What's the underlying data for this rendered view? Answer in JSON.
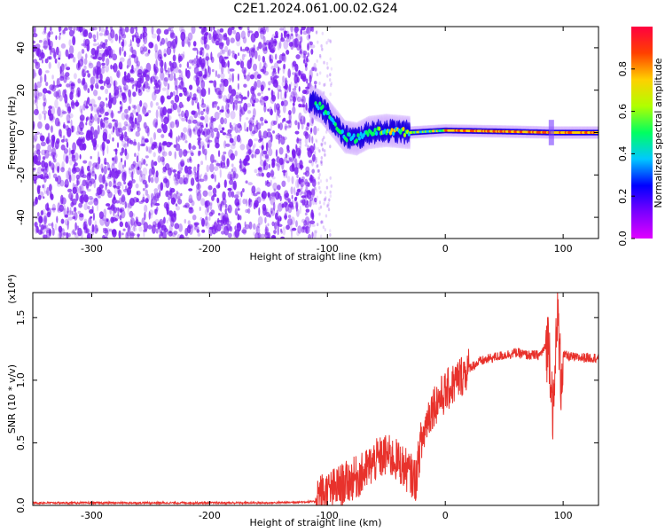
{
  "title": "C2E1.2024.061.00.02.G24",
  "colors": {
    "snr_line": "#e8322c",
    "spectrum_noise": "#7a1cf0",
    "background": "#ffffff"
  },
  "colorbar_gradient": [
    "#e000ff",
    "#7a00ff",
    "#0000ff",
    "#00c8ff",
    "#00ff60",
    "#b0ff00",
    "#ffd000",
    "#ff4000",
    "#ff0040"
  ],
  "chart_data": [
    {
      "type": "heatmap",
      "xlabel": "Height of straight line (km)",
      "ylabel": "Frequency (Hz)",
      "xlim": [
        -350,
        130
      ],
      "ylim": [
        -50,
        50
      ],
      "xticks": [
        -300,
        -200,
        -100,
        0,
        100
      ],
      "yticks": [
        -40,
        -20,
        0,
        20,
        40
      ],
      "grid": false,
      "colorbar": {
        "label": "Normalized spectral amplitude",
        "range": [
          0,
          1
        ],
        "ticks": [
          "0.0",
          "0.2",
          "0.4",
          "0.6",
          "0.8"
        ]
      },
      "signal_ridge": [
        {
          "x": -115,
          "y": 15
        },
        {
          "x": -105,
          "y": 12
        },
        {
          "x": -95,
          "y": 5
        },
        {
          "x": -85,
          "y": -2
        },
        {
          "x": -75,
          "y": -3
        },
        {
          "x": -65,
          "y": 0
        },
        {
          "x": -50,
          "y": 1
        },
        {
          "x": -30,
          "y": 0
        },
        {
          "x": 0,
          "y": 1
        },
        {
          "x": 50,
          "y": 0.5
        },
        {
          "x": 90,
          "y": 0
        },
        {
          "x": 130,
          "y": 0
        }
      ]
    },
    {
      "type": "line",
      "xlabel": "Height of straight line (km)",
      "ylabel": "SNR (10 * v/v)",
      "multiplier": "(x10⁴)",
      "xlim": [
        -350,
        130
      ],
      "ylim": [
        0,
        1.7
      ],
      "xticks": [
        -300,
        -200,
        -100,
        0,
        100
      ],
      "yticks": [
        "0.0",
        "0.5",
        "1.0",
        "1.5"
      ],
      "grid": false,
      "series": [
        {
          "x": [
            -350,
            -300,
            -250,
            -200,
            -150,
            -110,
            -100,
            -90,
            -80,
            -70,
            -60,
            -50,
            -40,
            -30,
            -25,
            -20,
            -15,
            -10,
            -5,
            0,
            10,
            20,
            30,
            40,
            50,
            60,
            70,
            80,
            88,
            92,
            95,
            98,
            100,
            110,
            120,
            130
          ],
          "y": [
            0.02,
            0.02,
            0.02,
            0.02,
            0.02,
            0.03,
            0.05,
            0.1,
            0.15,
            0.2,
            0.3,
            0.35,
            0.3,
            0.2,
            0.15,
            0.5,
            0.7,
            0.8,
            0.85,
            0.9,
            1.0,
            1.1,
            1.15,
            1.18,
            1.2,
            1.22,
            1.2,
            1.2,
            1.3,
            0.7,
            1.6,
            1.0,
            1.2,
            1.18,
            1.18,
            1.18
          ]
        }
      ]
    }
  ]
}
